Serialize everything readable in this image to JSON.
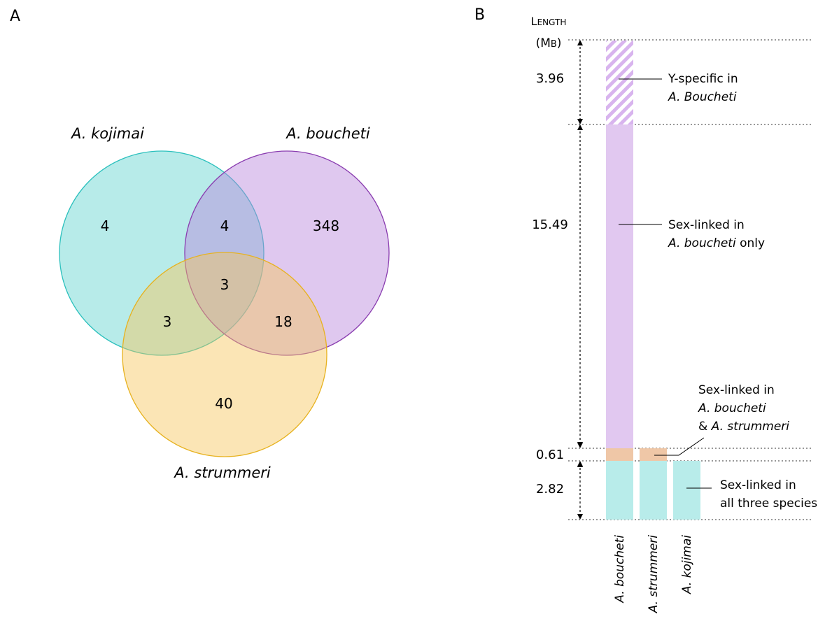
{
  "panels": {
    "a": {
      "label": "A",
      "colors": {
        "kojimai": "#5fd3cf",
        "boucheti": "#b784dc",
        "strummeri": "#f7c65a"
      },
      "species": {
        "kojimai": "A. kojimai",
        "boucheti": "A. boucheti",
        "strummeri": "A. strummeri"
      },
      "counts": {
        "kojimai_only": "4",
        "kojimai_boucheti": "4",
        "boucheti_only": "348",
        "all_three": "3",
        "kojimai_strummeri": "3",
        "boucheti_strummeri": "18",
        "strummeri_only": "40"
      }
    },
    "b": {
      "label": "B",
      "axis_title": {
        "line1_first": "L",
        "line1_rest": "ENGTH",
        "line2_a": "(M",
        "line2_b": "B",
        "line2_c": ")"
      },
      "colors": {
        "boucheti": "#e1c8f0",
        "shared_bs": "#efc7a7",
        "all_three": "#b8ecea",
        "hatch": "#d8b4ee"
      },
      "segments": [
        {
          "value": "3.96",
          "length_mb": 3.96,
          "annotation": {
            "line1": "Y-specific in",
            "line2": "A. Boucheti"
          }
        },
        {
          "value": "15.49",
          "length_mb": 15.49,
          "annotation": {
            "line1": "Sex-linked in",
            "line2_italic": "A. boucheti",
            "line2_rest": " only"
          }
        },
        {
          "value": "0.61",
          "length_mb": 0.61,
          "annotation": {
            "line1": "Sex-linked in",
            "line2": "A. boucheti",
            "line3_prefix": "& ",
            "line3_italic": "A. strummeri"
          }
        },
        {
          "value": "2.82",
          "length_mb": 2.82,
          "annotation": {
            "line1": "Sex-linked in",
            "line2": "all three species"
          }
        }
      ],
      "columns": [
        "A. boucheti",
        "A. strummeri",
        "A. kojimai"
      ]
    }
  }
}
